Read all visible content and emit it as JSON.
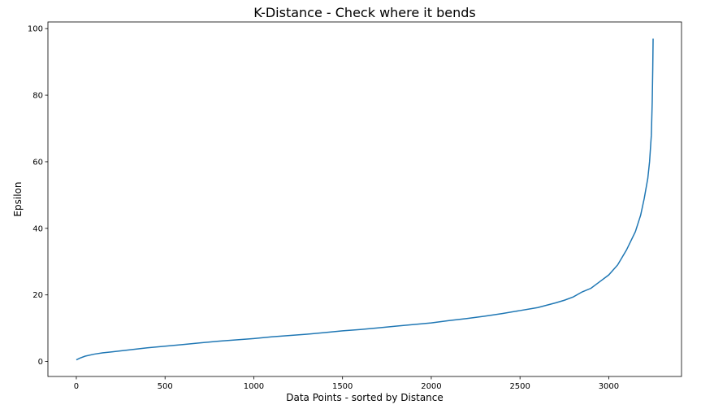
{
  "chart_data": {
    "type": "line",
    "title": "K-Distance - Check where it bends",
    "xlabel": "Data Points - sorted by Distance",
    "ylabel": "Epsilon",
    "xlim": [
      -160,
      3410
    ],
    "ylim": [
      -4.5,
      102
    ],
    "grid": false,
    "x_ticks": [
      0,
      500,
      1000,
      1500,
      2000,
      2500,
      3000
    ],
    "y_ticks": [
      0,
      20,
      40,
      60,
      80,
      100
    ],
    "series": [
      {
        "color": "#1f77b4",
        "x": [
          0,
          20,
          50,
          100,
          150,
          200,
          300,
          400,
          500,
          600,
          700,
          800,
          900,
          1000,
          1100,
          1200,
          1300,
          1400,
          1500,
          1600,
          1700,
          1800,
          1900,
          2000,
          2100,
          2200,
          2300,
          2400,
          2500,
          2600,
          2650,
          2700,
          2750,
          2800,
          2850,
          2900,
          2950,
          3000,
          3050,
          3100,
          3150,
          3180,
          3200,
          3220,
          3230,
          3240,
          3245,
          3248,
          3250
        ],
        "values": [
          0.5,
          1.0,
          1.6,
          2.2,
          2.6,
          2.9,
          3.5,
          4.1,
          4.6,
          5.1,
          5.6,
          6.1,
          6.5,
          6.9,
          7.4,
          7.8,
          8.2,
          8.7,
          9.2,
          9.6,
          10.1,
          10.6,
          11.1,
          11.6,
          12.3,
          12.9,
          13.6,
          14.4,
          15.3,
          16.2,
          16.9,
          17.6,
          18.4,
          19.4,
          20.9,
          22.0,
          24.0,
          26.0,
          29.0,
          33.5,
          39.0,
          44.0,
          49.0,
          55.0,
          60.0,
          68.0,
          78.0,
          88.0,
          97.0
        ]
      }
    ]
  }
}
